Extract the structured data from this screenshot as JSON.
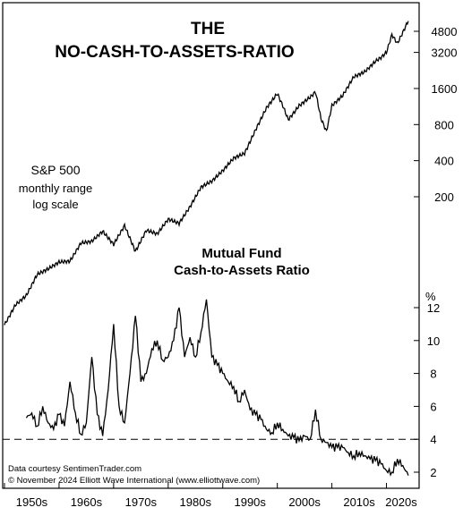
{
  "chart_data": [
    {
      "type": "line",
      "title": "THE",
      "subtitle": "NO-CASH-TO-ASSETS-RATIO",
      "series": [
        {
          "name": "S&P 500",
          "x": [
            1950,
            1952,
            1954,
            1956,
            1958,
            1960,
            1962,
            1964,
            1966,
            1968,
            1970,
            1972,
            1974,
            1976,
            1978,
            1980,
            1982,
            1984,
            1986,
            1988,
            1990,
            1992,
            1994,
            1996,
            1998,
            2000,
            2001,
            2002,
            2003,
            2004,
            2006,
            2007,
            2008,
            2009,
            2010,
            2012,
            2014,
            2016,
            2018,
            2019,
            2020,
            2021,
            2022,
            2023,
            2024
          ],
          "values": [
            17,
            25,
            30,
            45,
            50,
            57,
            58,
            82,
            85,
            103,
            80,
            115,
            70,
            105,
            98,
            130,
            120,
            165,
            240,
            270,
            330,
            420,
            460,
            720,
            1100,
            1450,
            1150,
            880,
            1000,
            1150,
            1350,
            1500,
            900,
            700,
            1150,
            1400,
            2000,
            2200,
            2700,
            2900,
            3200,
            4500,
            3800,
            4700,
            5900
          ]
        }
      ],
      "annotations": [
        "S&P 500",
        "monthly range",
        "log scale"
      ],
      "y_scale": "log",
      "yticks": [
        "4800",
        "3200",
        "1600",
        "800",
        "400",
        "200"
      ]
    },
    {
      "type": "line",
      "title": "Mutual Fund",
      "subtitle": "Cash-to-Assets Ratio",
      "series": [
        {
          "name": "Mutual Fund Cash-to-Assets Ratio",
          "x": [
            1954,
            1955,
            1956,
            1957,
            1958,
            1959,
            1960,
            1961,
            1962,
            1963,
            1964,
            1965,
            1966,
            1967,
            1968,
            1969,
            1970,
            1971,
            1972,
            1973,
            1974,
            1975,
            1976,
            1977,
            1978,
            1979,
            1980,
            1981,
            1982,
            1983,
            1984,
            1985,
            1986,
            1987,
            1988,
            1989,
            1990,
            1991,
            1992,
            1993,
            1994,
            1995,
            1996,
            1997,
            1998,
            1999,
            2000,
            2001,
            2002,
            2003,
            2004,
            2005,
            2006,
            2007,
            2008,
            2009,
            2010,
            2011,
            2012,
            2013,
            2014,
            2015,
            2016,
            2017,
            2018,
            2019,
            2020,
            2021,
            2022,
            2023,
            2024
          ],
          "values": [
            5.3,
            5.6,
            4.8,
            6.0,
            5.0,
            4.6,
            5.5,
            4.8,
            7.5,
            5.6,
            4.3,
            5.0,
            9.0,
            5.5,
            4.2,
            7.0,
            11.0,
            6.0,
            5.0,
            8.0,
            11.5,
            7.5,
            8.0,
            9.5,
            10.0,
            8.8,
            9.0,
            10.0,
            12.0,
            9.0,
            10.2,
            9.0,
            10.5,
            12.5,
            9.0,
            8.5,
            8.0,
            7.5,
            7.2,
            6.3,
            7.0,
            5.8,
            5.5,
            5.2,
            4.6,
            4.4,
            5.0,
            4.6,
            4.2,
            4.1,
            3.9,
            4.2,
            4.0,
            5.8,
            4.0,
            3.8,
            3.5,
            3.5,
            3.5,
            3.2,
            3.0,
            3.2,
            3.0,
            2.8,
            2.7,
            2.5,
            2.1,
            2.0,
            2.8,
            2.4,
            1.8
          ]
        }
      ],
      "reference_line": 4,
      "yticks": [
        "12",
        "10",
        "8",
        "6",
        "4",
        "2"
      ],
      "yunit": "%",
      "xticks": [
        "1950s",
        "1960s",
        "1970s",
        "1980s",
        "1990s",
        "2000s",
        "2010s",
        "2020s"
      ]
    }
  ],
  "credits": {
    "line1": "Data courtesy SentimenTrader.com",
    "line2": "© November 2024 Elliott Wave International (www.elliottwave.com)"
  }
}
